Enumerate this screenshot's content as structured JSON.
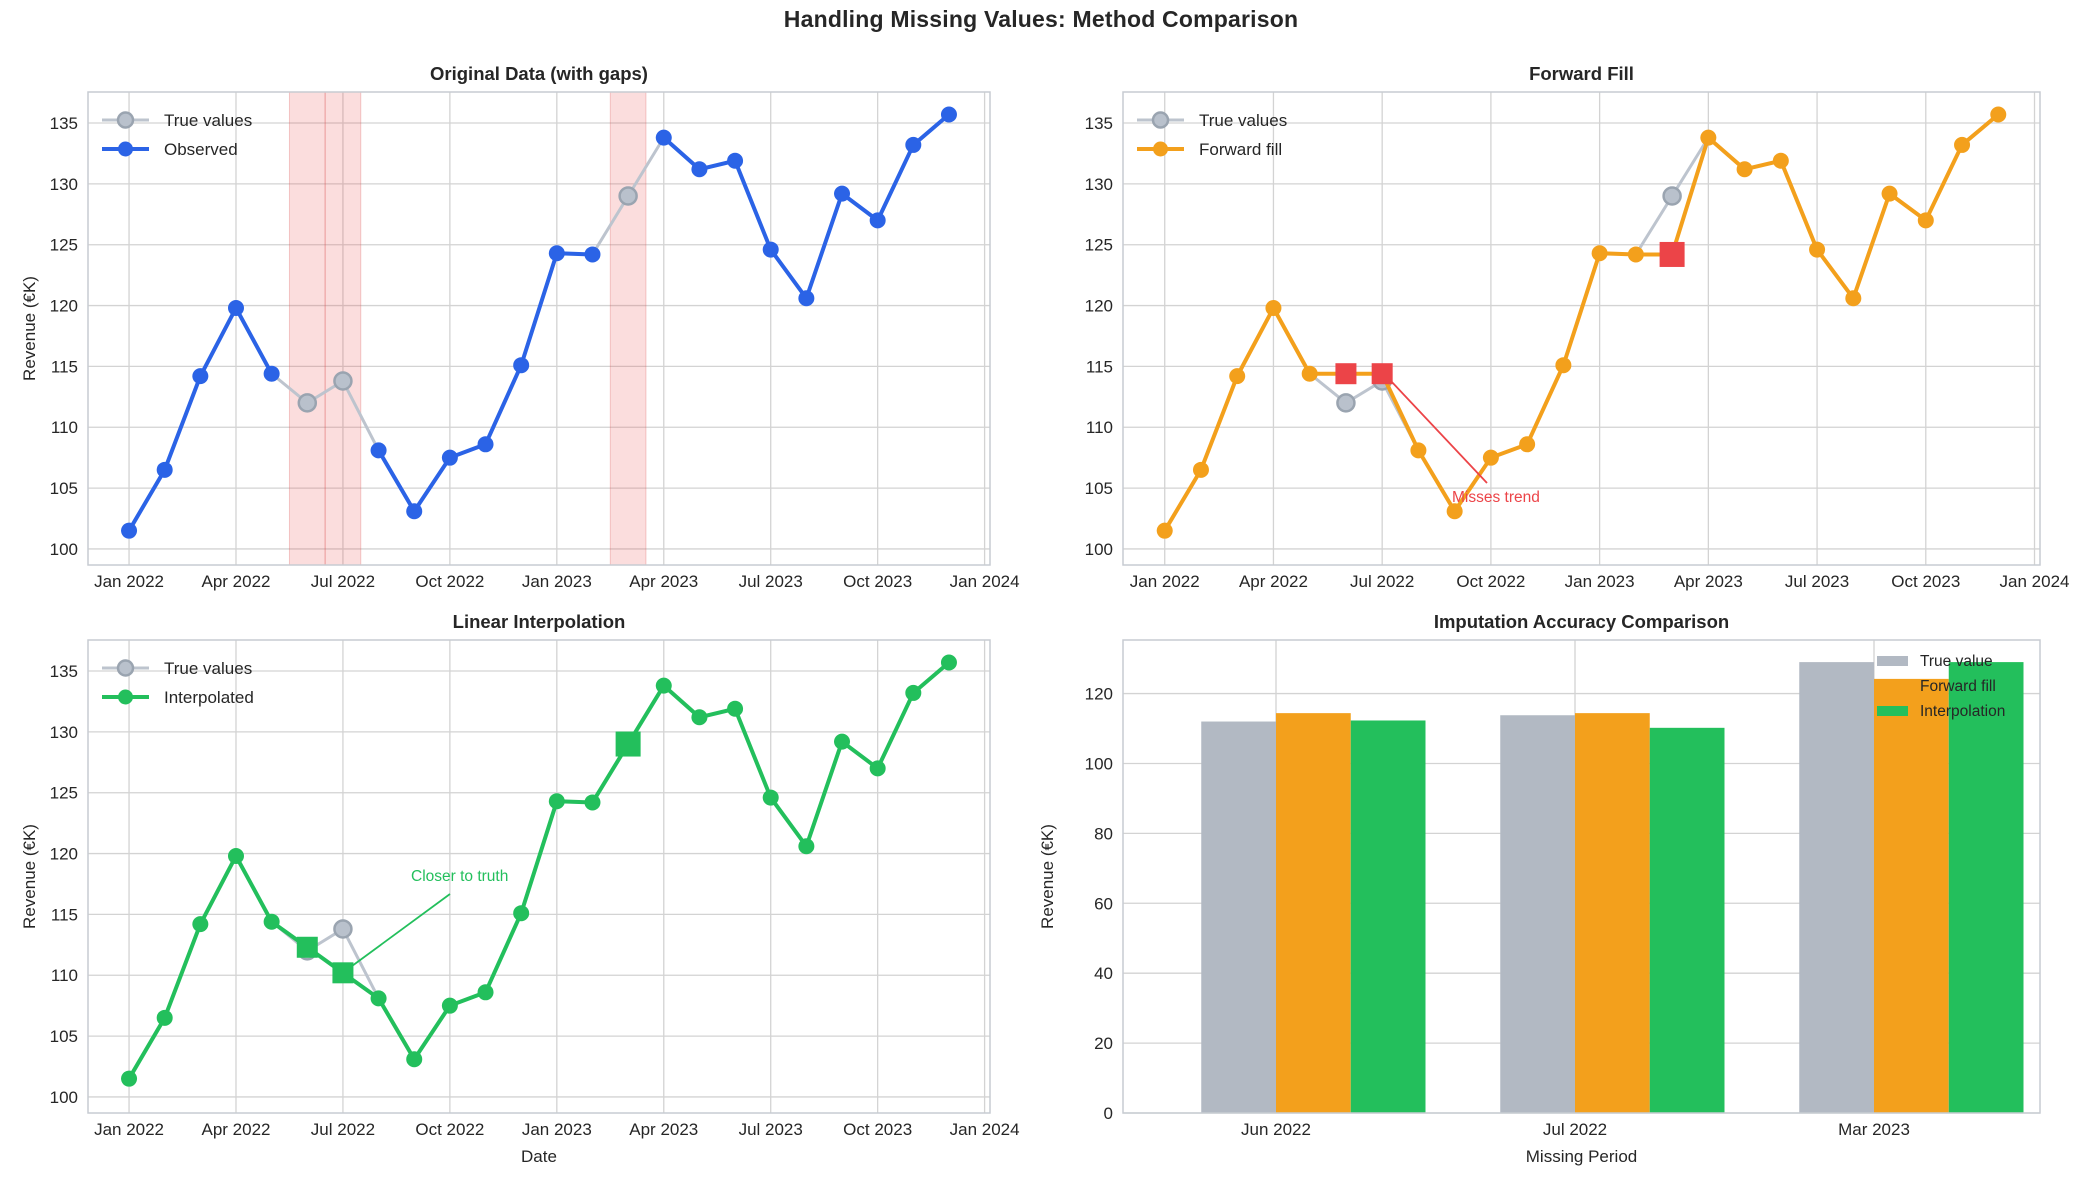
{
  "suptitle": "Handling Missing Values: Method Comparison",
  "palette": {
    "text": "#262626",
    "grid": "#d3d3d3",
    "spine": "#c7ccd2",
    "blue": "#2B63E6",
    "orange": "#F3A01C",
    "green": "#23BF5C",
    "red": "#EC4448",
    "gray_line": "#bdc4ce",
    "gray_marker_fill": "#b9c1cc",
    "gray_marker_edge": "#9aa4b0",
    "gray_bar": "#b2b9c3",
    "band_fill": "rgba(235,85,85,0.20)",
    "band_edge": "rgba(220,90,90,0.30)"
  },
  "months": [
    "Jan 2022",
    "Feb 2022",
    "Mar 2022",
    "Apr 2022",
    "May 2022",
    "Jun 2022",
    "Jul 2022",
    "Aug 2022",
    "Sep 2022",
    "Oct 2022",
    "Nov 2022",
    "Dec 2022",
    "Jan 2023",
    "Feb 2023",
    "Mar 2023",
    "Apr 2023",
    "May 2023",
    "Jun 2023",
    "Jul 2023",
    "Aug 2023",
    "Sep 2023",
    "Oct 2023",
    "Nov 2023",
    "Dec 2023"
  ],
  "axis": {
    "x_tick_labels": [
      "Jan 2022",
      "Apr 2022",
      "Jul 2022",
      "Oct 2022",
      "Jan 2023",
      "Apr 2023",
      "Jul 2023",
      "Oct 2023",
      "Jan 2024"
    ],
    "x_tick_indices": [
      0,
      3,
      6,
      9,
      12,
      15,
      18,
      21,
      24
    ],
    "y_ticks_line": [
      100,
      105,
      110,
      115,
      120,
      125,
      130,
      135
    ],
    "y_label": "Revenue (€K)"
  },
  "chart_data": [
    {
      "id": "original",
      "type": "line",
      "title": "Original Data (with gaps)",
      "legend": [
        "True values",
        "Observed"
      ],
      "ylabel": "Revenue (€K)",
      "true_values": [
        101.5,
        106.5,
        114.2,
        119.8,
        114.4,
        112.0,
        113.8,
        108.1,
        103.1,
        107.5,
        108.6,
        115.1,
        124.3,
        124.2,
        129.0,
        133.8,
        131.2,
        131.9,
        124.6,
        120.6,
        129.2,
        127.0,
        133.2,
        135.7
      ],
      "missing_indices": [
        5,
        6,
        14
      ],
      "missing_labels": [
        "Jun 2022",
        "Jul 2022",
        "Mar 2023"
      ],
      "ylim": [
        98.7,
        137.5
      ]
    },
    {
      "id": "forward_fill",
      "type": "line",
      "title": "Forward Fill",
      "legend": [
        "True values",
        "Forward fill"
      ],
      "series_values": [
        101.5,
        106.5,
        114.2,
        119.8,
        114.4,
        114.4,
        114.4,
        108.1,
        103.1,
        107.5,
        108.6,
        115.1,
        124.3,
        124.2,
        124.2,
        133.8,
        131.2,
        131.9,
        124.6,
        120.6,
        129.2,
        127.0,
        133.2,
        135.7
      ],
      "imputed": {
        "Jun 2022": 114.4,
        "Jul 2022": 114.4,
        "Mar 2023": 124.2
      },
      "annotation": "Misses trend"
    },
    {
      "id": "interpolation",
      "type": "line",
      "title": "Linear Interpolation",
      "legend": [
        "True values",
        "Interpolated"
      ],
      "xlabel": "Date",
      "ylabel": "Revenue (€K)",
      "series_values": [
        101.5,
        106.5,
        114.2,
        119.8,
        114.4,
        112.3,
        110.2,
        108.1,
        103.1,
        107.5,
        108.6,
        115.1,
        124.3,
        124.2,
        129.0,
        133.8,
        131.2,
        131.9,
        124.6,
        120.6,
        129.2,
        127.0,
        133.2,
        135.7
      ],
      "imputed": {
        "Jun 2022": 112.3,
        "Jul 2022": 110.2,
        "Mar 2023": 129.0
      },
      "annotation": "Closer to truth"
    },
    {
      "id": "accuracy",
      "type": "bar",
      "title": "Imputation Accuracy Comparison",
      "xlabel": "Missing Period",
      "ylabel": "Revenue (€K)",
      "categories": [
        "Jun 2022",
        "Jul 2022",
        "Mar 2023"
      ],
      "series": [
        {
          "name": "True value",
          "values": [
            112.0,
            113.8,
            129.0
          ]
        },
        {
          "name": "Forward fill",
          "values": [
            114.4,
            114.4,
            124.2
          ]
        },
        {
          "name": "Interpolation",
          "values": [
            112.3,
            110.2,
            129.0
          ]
        }
      ],
      "y_ticks": [
        0,
        20,
        40,
        60,
        80,
        100,
        120
      ],
      "ylim": [
        0,
        135.3
      ],
      "legend_position": "upper right"
    }
  ]
}
